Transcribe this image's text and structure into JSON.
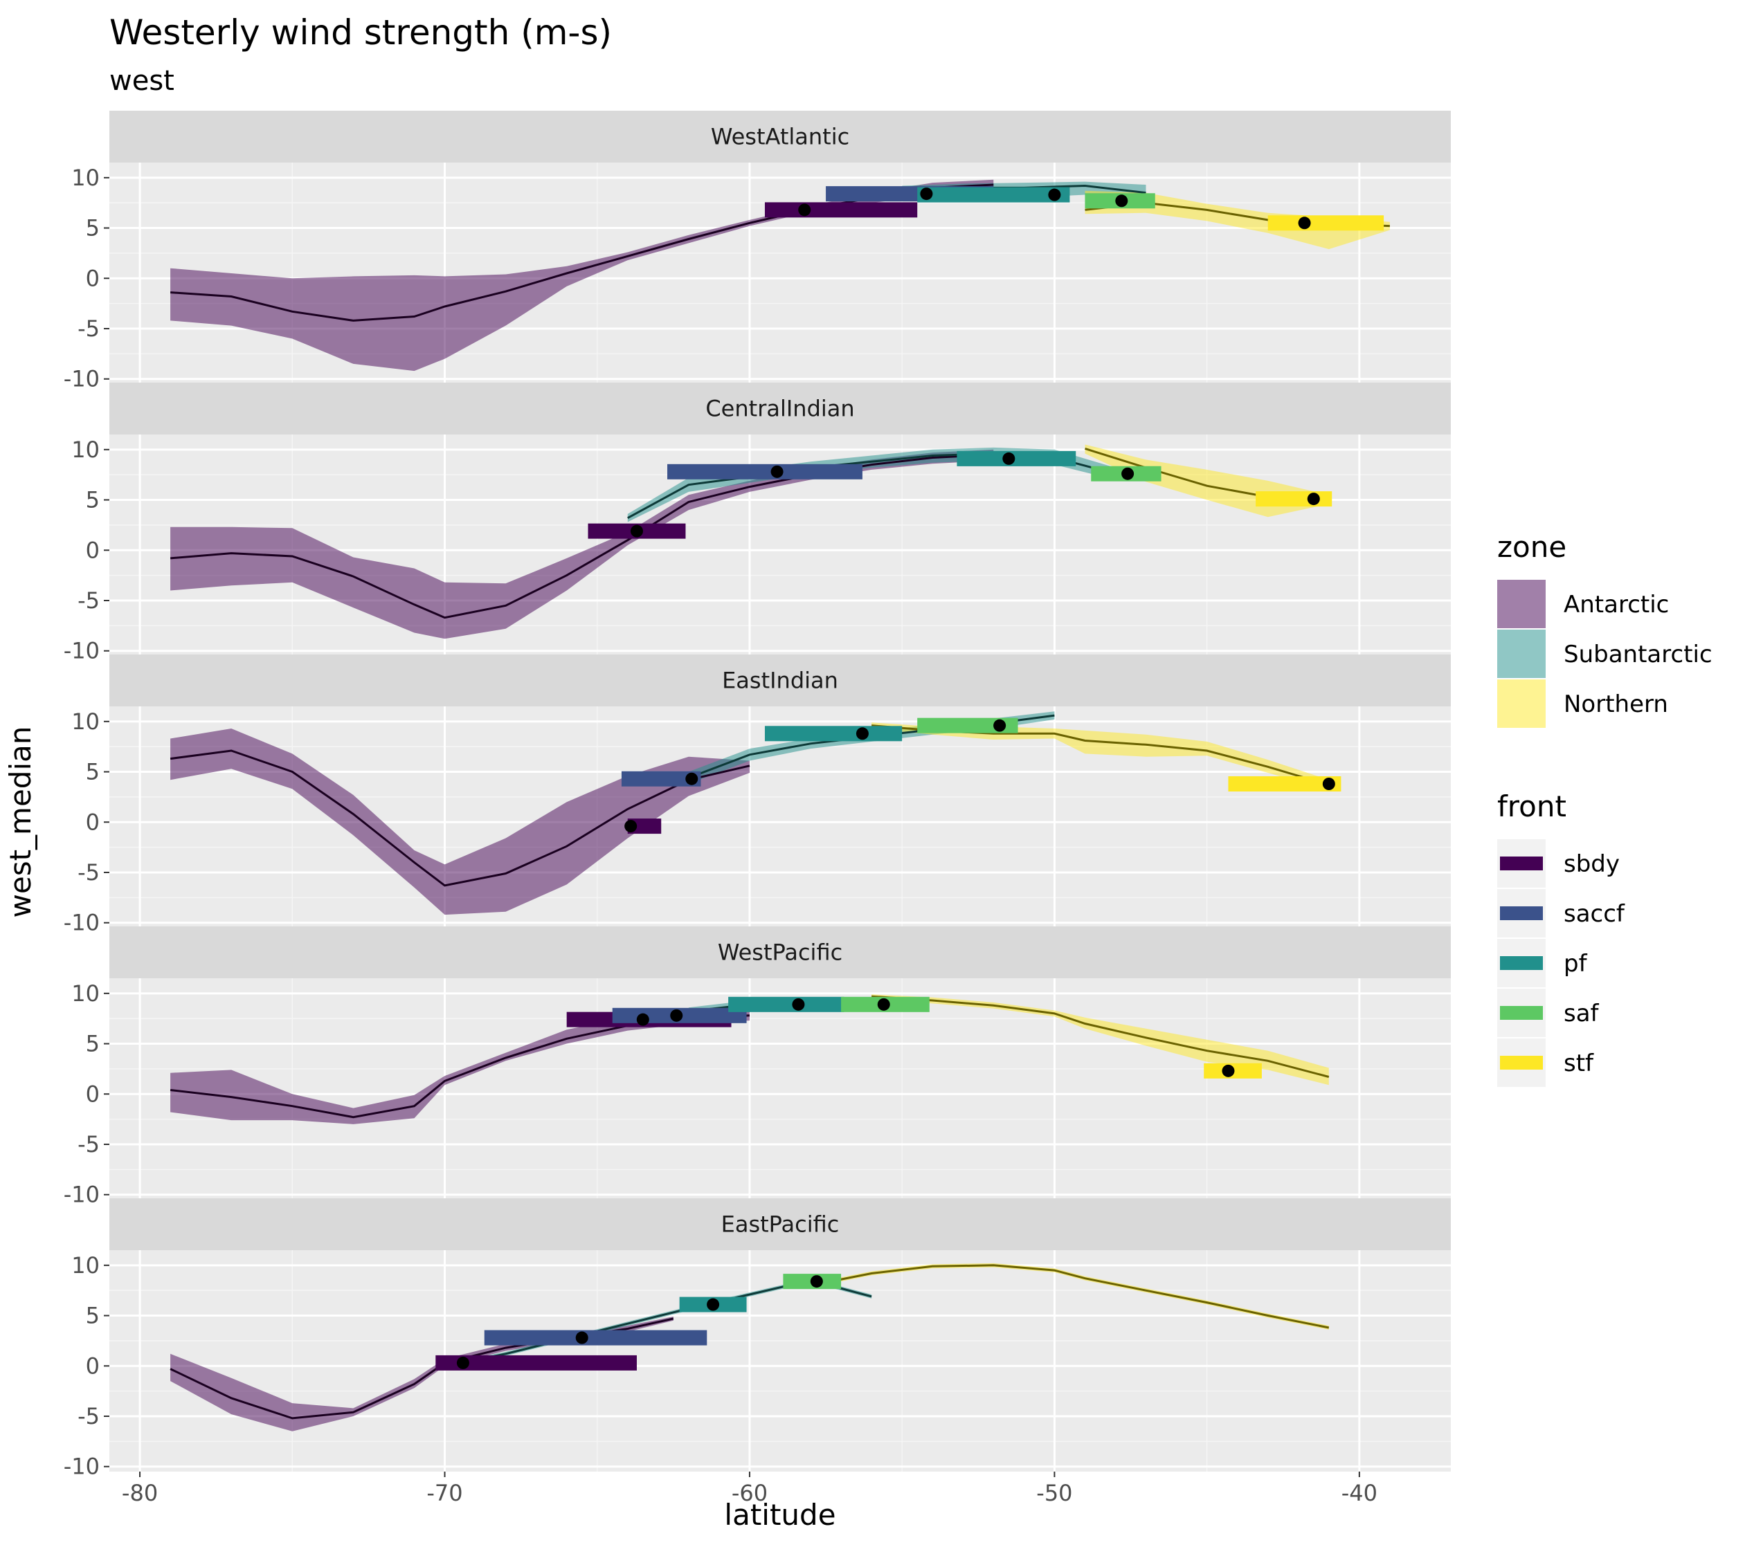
{
  "colors": {
    "panel_bg": "#EBEBEB",
    "strip_bg": "#D9D9D9",
    "grid_major": "#FFFFFF",
    "grid_minor": "#F5F5F5",
    "zone": {
      "Antarctic": "#440154",
      "Subantarctic": "#21908C",
      "Northern": "#FDE725"
    },
    "zone_line": {
      "Antarctic": "#1A0020",
      "Subantarctic": "#0D3A38",
      "Northern": "#6A6200"
    },
    "front": {
      "sbdy": "#440154",
      "saccf": "#3B528B",
      "pf": "#21908C",
      "saf": "#5DC863",
      "stf": "#FDE725"
    }
  },
  "chart_data": {
    "type": "line",
    "title": "Westerly wind strength (m-s)",
    "subtitle": "west",
    "xlabel": "latitude",
    "ylabel": "west_median",
    "xlim": [
      -81,
      -37
    ],
    "ylim": [
      -10.5,
      11.5
    ],
    "x_ticks": [
      -80,
      -70,
      -60,
      -50,
      -40
    ],
    "y_ticks": [
      -10,
      -5,
      0,
      5,
      10
    ],
    "grid": true,
    "legend_position": "right",
    "zone_legend": {
      "title": "zone",
      "entries": [
        "Antarctic",
        "Subantarctic",
        "Northern"
      ]
    },
    "front_legend": {
      "title": "front",
      "entries": [
        "sbdy",
        "saccf",
        "pf",
        "saf",
        "stf"
      ]
    },
    "panels": [
      {
        "name": "WestAtlantic",
        "zones": [
          {
            "zone": "Antarctic",
            "x": [
              -79,
              -77,
              -75,
              -73,
              -71,
              -70,
              -68,
              -66,
              -64,
              -62,
              -60,
              -58,
              -56,
              -54,
              -52
            ],
            "y": [
              -1.4,
              -1.8,
              -3.3,
              -4.2,
              -3.8,
              -2.8,
              -1.3,
              0.5,
              2.2,
              3.9,
              5.5,
              6.9,
              8.0,
              9.0,
              9.3
            ],
            "lo": [
              -4.2,
              -4.7,
              -6.0,
              -8.5,
              -9.2,
              -8.0,
              -4.7,
              -0.8,
              1.8,
              3.5,
              5.2,
              6.6,
              7.5,
              8.2,
              8.7
            ],
            "hi": [
              1.0,
              0.5,
              0.0,
              0.2,
              0.3,
              0.2,
              0.4,
              1.2,
              2.6,
              4.3,
              5.8,
              7.2,
              8.5,
              9.5,
              9.8
            ]
          },
          {
            "zone": "Subantarctic",
            "x": [
              -55,
              -53,
              -51,
              -49,
              -47
            ],
            "y": [
              8.6,
              9.0,
              9.0,
              9.2,
              8.5
            ],
            "lo": [
              7.9,
              8.0,
              8.0,
              8.3,
              7.8
            ],
            "hi": [
              9.2,
              9.4,
              9.5,
              9.6,
              9.3
            ]
          },
          {
            "zone": "Northern",
            "x": [
              -49,
              -47,
              -45,
              -43,
              -41,
              -39
            ],
            "y": [
              6.8,
              7.5,
              6.8,
              5.8,
              5.4,
              5.2
            ],
            "lo": [
              6.4,
              6.5,
              5.7,
              4.5,
              2.9,
              4.8
            ],
            "hi": [
              8.7,
              8.5,
              7.4,
              6.5,
              6.1,
              5.6
            ]
          }
        ],
        "fronts": [
          {
            "front": "sbdy",
            "x": -58.2,
            "y": 6.8,
            "xmin": -59.5,
            "xmax": -54.5
          },
          {
            "front": "saccf",
            "x": -54.2,
            "y": 8.4,
            "xmin": -57.5,
            "xmax": -52.0
          },
          {
            "front": "pf",
            "x": -50.0,
            "y": 8.3,
            "xmin": -54.5,
            "xmax": -49.5
          },
          {
            "front": "saf",
            "x": -47.8,
            "y": 7.7,
            "xmin": -49.0,
            "xmax": -46.7
          },
          {
            "front": "stf",
            "x": -41.8,
            "y": 5.5,
            "xmin": -43.0,
            "xmax": -39.2
          }
        ]
      },
      {
        "name": "CentralIndian",
        "zones": [
          {
            "zone": "Antarctic",
            "x": [
              -79,
              -77,
              -75,
              -73,
              -71,
              -70,
              -68,
              -66,
              -64,
              -62,
              -60,
              -58,
              -56,
              -54,
              -52
            ],
            "y": [
              -0.8,
              -0.3,
              -0.6,
              -2.6,
              -5.4,
              -6.7,
              -5.5,
              -2.5,
              1.0,
              4.8,
              6.3,
              7.5,
              8.5,
              9.2,
              9.5
            ],
            "lo": [
              -4.0,
              -3.5,
              -3.2,
              -5.7,
              -8.2,
              -8.8,
              -7.8,
              -4.0,
              0.5,
              4.0,
              5.8,
              7.0,
              8.0,
              8.6,
              8.9
            ],
            "hi": [
              2.3,
              2.3,
              2.2,
              -0.7,
              -1.8,
              -3.2,
              -3.3,
              -0.8,
              1.8,
              5.5,
              6.9,
              8.1,
              9.0,
              9.7,
              10.0
            ]
          },
          {
            "zone": "Subantarctic",
            "x": [
              -64,
              -62,
              -60,
              -58,
              -56,
              -54,
              -52,
              -50,
              -48
            ],
            "y": [
              3.2,
              6.5,
              7.3,
              8.2,
              8.8,
              9.4,
              9.6,
              9.2,
              7.6
            ],
            "lo": [
              2.8,
              5.8,
              6.7,
              7.6,
              8.2,
              8.7,
              8.9,
              8.5,
              7.0
            ],
            "hi": [
              3.6,
              7.2,
              8.0,
              8.8,
              9.4,
              10.0,
              10.2,
              10.0,
              8.2
            ]
          },
          {
            "zone": "Northern",
            "x": [
              -49,
              -47,
              -45,
              -43,
              -41
            ],
            "y": [
              10.1,
              8.2,
              6.4,
              5.3,
              5.0
            ],
            "lo": [
              9.6,
              6.8,
              5.0,
              3.3,
              4.6
            ],
            "hi": [
              10.5,
              9.0,
              8.0,
              6.9,
              5.5
            ]
          }
        ],
        "fronts": [
          {
            "front": "sbdy",
            "x": -63.7,
            "y": 1.9,
            "xmin": -65.3,
            "xmax": -62.1
          },
          {
            "front": "saccf",
            "x": -59.1,
            "y": 7.8,
            "xmin": -62.7,
            "xmax": -56.3
          },
          {
            "front": "pf",
            "x": -51.5,
            "y": 9.1,
            "xmin": -53.2,
            "xmax": -49.3
          },
          {
            "front": "saf",
            "x": -47.6,
            "y": 7.6,
            "xmin": -48.8,
            "xmax": -46.5
          },
          {
            "front": "stf",
            "x": -41.5,
            "y": 5.1,
            "xmin": -43.4,
            "xmax": -40.9
          }
        ]
      },
      {
        "name": "EastIndian",
        "zones": [
          {
            "zone": "Antarctic",
            "x": [
              -79,
              -77,
              -75,
              -73,
              -71,
              -70,
              -68,
              -66,
              -64,
              -62,
              -60
            ],
            "y": [
              6.3,
              7.1,
              5.0,
              0.8,
              -4.0,
              -6.3,
              -5.1,
              -2.4,
              1.3,
              4.2,
              5.6
            ],
            "lo": [
              4.2,
              5.3,
              3.3,
              -1.3,
              -6.5,
              -9.2,
              -8.9,
              -6.2,
              -1.6,
              2.6,
              4.9
            ],
            "hi": [
              8.3,
              9.3,
              6.8,
              2.7,
              -2.8,
              -4.2,
              -1.6,
              2.0,
              4.6,
              6.5,
              6.1
            ]
          },
          {
            "zone": "Subantarctic",
            "x": [
              -62,
              -60,
              -58,
              -56,
              -54,
              -52,
              -50
            ],
            "y": [
              4.4,
              6.7,
              7.8,
              8.5,
              9.2,
              9.8,
              10.6
            ],
            "lo": [
              3.8,
              6.1,
              7.3,
              8.0,
              8.7,
              9.3,
              10.2
            ],
            "hi": [
              5.0,
              7.3,
              8.3,
              9.0,
              9.7,
              10.3,
              11.0
            ]
          },
          {
            "zone": "Northern",
            "x": [
              -56,
              -54,
              -52,
              -50,
              -49,
              -47,
              -45,
              -43,
              -41
            ],
            "y": [
              9.6,
              9.1,
              8.8,
              8.8,
              8.1,
              7.7,
              7.1,
              5.5,
              3.7
            ],
            "lo": [
              9.3,
              8.7,
              8.2,
              8.3,
              6.8,
              6.5,
              6.6,
              4.9,
              3.2
            ],
            "hi": [
              9.9,
              9.5,
              9.5,
              9.3,
              9.1,
              8.7,
              8.0,
              6.2,
              4.2
            ]
          }
        ],
        "fronts": [
          {
            "front": "sbdy",
            "x": -63.9,
            "y": -0.4,
            "xmin": -64.0,
            "xmax": -62.9
          },
          {
            "front": "saccf",
            "x": -61.9,
            "y": 4.3,
            "xmin": -64.2,
            "xmax": -61.6
          },
          {
            "front": "pf",
            "x": -56.3,
            "y": 8.8,
            "xmin": -59.5,
            "xmax": -55.0
          },
          {
            "front": "saf",
            "x": -51.8,
            "y": 9.6,
            "xmin": -54.5,
            "xmax": -51.2
          },
          {
            "front": "stf",
            "x": -41.0,
            "y": 3.8,
            "xmin": -44.3,
            "xmax": -40.6
          }
        ]
      },
      {
        "name": "WestPacific",
        "zones": [
          {
            "zone": "Antarctic",
            "x": [
              -79,
              -77,
              -75,
              -73,
              -71,
              -70,
              -68,
              -66,
              -64,
              -62,
              -60
            ],
            "y": [
              0.4,
              -0.3,
              -1.2,
              -2.3,
              -1.2,
              1.3,
              3.6,
              5.5,
              6.8,
              7.5,
              7.8
            ],
            "lo": [
              -1.8,
              -2.6,
              -2.6,
              -3.0,
              -2.4,
              0.9,
              3.3,
              5.0,
              6.3,
              7.0,
              7.3
            ],
            "hi": [
              2.1,
              2.4,
              0.0,
              -1.4,
              -0.1,
              1.8,
              4.1,
              6.4,
              7.6,
              8.2,
              8.4
            ]
          },
          {
            "zone": "Subantarctic",
            "x": [
              -62,
              -60,
              -58,
              -56
            ],
            "y": [
              8.2,
              8.9,
              9.0,
              9.1
            ],
            "lo": [
              7.8,
              8.5,
              8.6,
              8.7
            ],
            "hi": [
              8.6,
              9.3,
              9.4,
              9.5
            ]
          },
          {
            "zone": "Northern",
            "x": [
              -56,
              -54,
              -52,
              -50,
              -49,
              -47,
              -45,
              -43,
              -41
            ],
            "y": [
              9.7,
              9.3,
              8.8,
              8.0,
              7.0,
              5.6,
              4.3,
              3.3,
              1.7
            ],
            "lo": [
              9.5,
              9.0,
              8.5,
              7.7,
              6.5,
              4.8,
              3.2,
              2.4,
              0.9
            ],
            "hi": [
              9.9,
              9.6,
              9.1,
              8.3,
              7.6,
              6.5,
              5.4,
              4.3,
              2.6
            ]
          }
        ],
        "fronts": [
          {
            "front": "sbdy",
            "x": -63.5,
            "y": 7.4,
            "xmin": -66.0,
            "xmax": -60.6
          },
          {
            "front": "saccf",
            "x": -62.4,
            "y": 7.8,
            "xmin": -64.5,
            "xmax": -60.1
          },
          {
            "front": "pf",
            "x": -58.4,
            "y": 8.9,
            "xmin": -60.7,
            "xmax": -56.9
          },
          {
            "front": "saf",
            "x": -55.6,
            "y": 8.9,
            "xmin": -57.0,
            "xmax": -54.1
          },
          {
            "front": "stf",
            "x": -44.3,
            "y": 2.3,
            "xmin": -45.1,
            "xmax": -43.2
          }
        ]
      },
      {
        "name": "EastPacific",
        "zones": [
          {
            "zone": "Antarctic",
            "x": [
              -79,
              -77,
              -75,
              -73,
              -71,
              -70,
              -68,
              -66,
              -64,
              -62.5
            ],
            "y": [
              -0.3,
              -3.2,
              -5.2,
              -4.6,
              -1.8,
              0.3,
              1.8,
              2.8,
              3.7,
              4.7
            ],
            "lo": [
              -1.5,
              -4.8,
              -6.5,
              -5.0,
              -2.2,
              0.0,
              1.5,
              2.5,
              3.4,
              4.5
            ],
            "hi": [
              1.2,
              -1.2,
              -3.7,
              -4.2,
              -1.3,
              0.7,
              2.2,
              3.1,
              4.0,
              4.9
            ]
          },
          {
            "zone": "Subantarctic",
            "x": [
              -70,
              -68,
              -66,
              -64,
              -62,
              -60,
              -58,
              -56
            ],
            "y": [
              0.0,
              1.2,
              2.7,
              4.2,
              5.7,
              7.1,
              8.5,
              6.9
            ],
            "lo": [
              -0.2,
              1.0,
              2.5,
              4.0,
              5.5,
              6.9,
              8.3,
              6.7
            ],
            "hi": [
              0.2,
              1.4,
              2.9,
              4.4,
              5.9,
              7.3,
              8.7,
              7.1
            ]
          },
          {
            "zone": "Northern",
            "x": [
              -58,
              -56,
              -54,
              -52,
              -50,
              -49,
              -47,
              -45,
              -43,
              -41
            ],
            "y": [
              8.0,
              9.2,
              9.9,
              10.0,
              9.5,
              8.7,
              7.5,
              6.3,
              5.0,
              3.8
            ],
            "lo": [
              7.8,
              9.0,
              9.7,
              9.8,
              9.3,
              8.5,
              7.3,
              6.1,
              4.8,
              3.6
            ],
            "hi": [
              8.2,
              9.4,
              10.1,
              10.2,
              9.7,
              8.9,
              7.7,
              6.5,
              5.2,
              4.0
            ]
          }
        ],
        "fronts": [
          {
            "front": "sbdy",
            "x": -69.4,
            "y": 0.3,
            "xmin": -70.3,
            "xmax": -63.7
          },
          {
            "front": "saccf",
            "x": -65.5,
            "y": 2.8,
            "xmin": -68.7,
            "xmax": -61.4
          },
          {
            "front": "pf",
            "x": -61.2,
            "y": 6.1,
            "xmin": -62.3,
            "xmax": -60.1
          },
          {
            "front": "saf",
            "x": -57.8,
            "y": 8.4,
            "xmin": -58.9,
            "xmax": -57.0
          }
        ]
      }
    ]
  }
}
